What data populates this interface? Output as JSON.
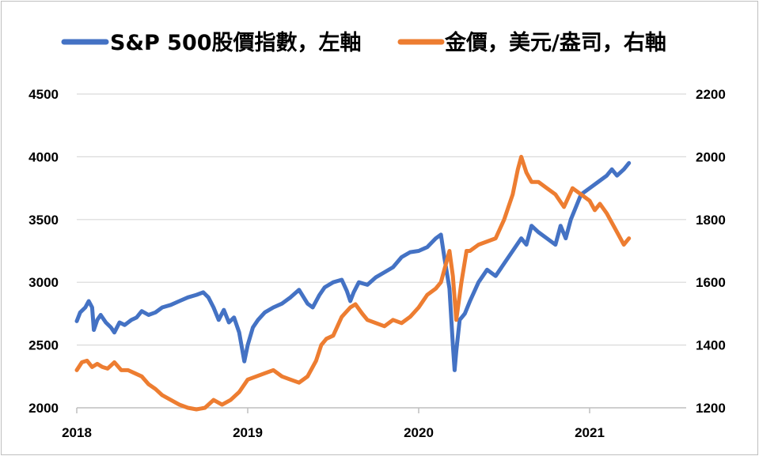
{
  "chart_data": {
    "type": "line",
    "title": "",
    "legend_position": "top",
    "grid": true,
    "x_axis": {
      "ticks": [
        "2018",
        "2019",
        "2020",
        "2021"
      ],
      "range": [
        2018.0,
        2022.0
      ]
    },
    "y_left": {
      "ticks": [
        "2000",
        "2500",
        "3000",
        "3500",
        "4000",
        "4500"
      ],
      "range": [
        2000,
        4500
      ]
    },
    "y_right": {
      "ticks": [
        "1200",
        "1400",
        "1600",
        "1800",
        "2000",
        "2200"
      ],
      "range": [
        1200,
        2200
      ]
    },
    "series": [
      {
        "name": "S&P 500股價指數，左軸",
        "axis": "left",
        "color": "#4472c4",
        "x": [
          2018.0,
          2018.02,
          2018.05,
          2018.07,
          2018.09,
          2018.1,
          2018.12,
          2018.14,
          2018.17,
          2018.2,
          2018.22,
          2018.25,
          2018.28,
          2018.32,
          2018.35,
          2018.38,
          2018.42,
          2018.46,
          2018.5,
          2018.55,
          2018.6,
          2018.65,
          2018.7,
          2018.74,
          2018.77,
          2018.8,
          2018.83,
          2018.86,
          2018.89,
          2018.92,
          2018.95,
          2018.98,
          2019.0,
          2019.03,
          2019.06,
          2019.1,
          2019.15,
          2019.2,
          2019.25,
          2019.3,
          2019.35,
          2019.38,
          2019.42,
          2019.45,
          2019.5,
          2019.55,
          2019.58,
          2019.6,
          2019.62,
          2019.65,
          2019.7,
          2019.75,
          2019.8,
          2019.85,
          2019.9,
          2019.95,
          2020.0,
          2020.05,
          2020.1,
          2020.13,
          2020.15,
          2020.18,
          2020.2,
          2020.21,
          2020.22,
          2020.24,
          2020.27,
          2020.3,
          2020.35,
          2020.4,
          2020.45,
          2020.5,
          2020.55,
          2020.6,
          2020.63,
          2020.66,
          2020.7,
          2020.75,
          2020.8,
          2020.83,
          2020.86,
          2020.89,
          2020.92,
          2020.95,
          2021.0,
          2021.05,
          2021.1,
          2021.13,
          2021.16,
          2021.2,
          2021.23
        ],
        "y": [
          2690,
          2760,
          2800,
          2850,
          2800,
          2620,
          2700,
          2740,
          2680,
          2640,
          2600,
          2680,
          2660,
          2700,
          2720,
          2770,
          2740,
          2760,
          2800,
          2820,
          2850,
          2880,
          2900,
          2920,
          2880,
          2800,
          2700,
          2780,
          2680,
          2720,
          2600,
          2370,
          2500,
          2640,
          2700,
          2760,
          2800,
          2830,
          2880,
          2940,
          2830,
          2800,
          2900,
          2960,
          3000,
          3020,
          2930,
          2850,
          2920,
          3000,
          2980,
          3040,
          3080,
          3120,
          3200,
          3240,
          3250,
          3280,
          3350,
          3380,
          3200,
          2950,
          2500,
          2300,
          2450,
          2700,
          2750,
          2850,
          3000,
          3100,
          3050,
          3150,
          3250,
          3350,
          3300,
          3450,
          3400,
          3350,
          3300,
          3450,
          3350,
          3500,
          3600,
          3700,
          3750,
          3800,
          3850,
          3900,
          3850,
          3900,
          3950
        ]
      },
      {
        "name": "金價，美元/盎司，右軸",
        "axis": "right",
        "color": "#ed7d31",
        "x": [
          2018.0,
          2018.03,
          2018.06,
          2018.09,
          2018.12,
          2018.15,
          2018.18,
          2018.22,
          2018.26,
          2018.3,
          2018.34,
          2018.38,
          2018.42,
          2018.46,
          2018.5,
          2018.55,
          2018.6,
          2018.65,
          2018.7,
          2018.75,
          2018.8,
          2018.85,
          2018.9,
          2018.95,
          2019.0,
          2019.05,
          2019.1,
          2019.15,
          2019.2,
          2019.25,
          2019.3,
          2019.35,
          2019.4,
          2019.43,
          2019.46,
          2019.5,
          2019.55,
          2019.6,
          2019.63,
          2019.67,
          2019.7,
          2019.75,
          2019.8,
          2019.85,
          2019.9,
          2019.95,
          2020.0,
          2020.05,
          2020.1,
          2020.13,
          2020.16,
          2020.18,
          2020.2,
          2020.22,
          2020.25,
          2020.28,
          2020.3,
          2020.35,
          2020.4,
          2020.45,
          2020.5,
          2020.55,
          2020.58,
          2020.6,
          2020.63,
          2020.66,
          2020.7,
          2020.75,
          2020.8,
          2020.85,
          2020.9,
          2020.95,
          2021.0,
          2021.03,
          2021.06,
          2021.1,
          2021.13,
          2021.16,
          2021.2,
          2021.23
        ],
        "y": [
          1320,
          1345,
          1350,
          1330,
          1340,
          1330,
          1325,
          1345,
          1320,
          1320,
          1310,
          1300,
          1275,
          1260,
          1240,
          1225,
          1210,
          1200,
          1195,
          1200,
          1225,
          1210,
          1225,
          1250,
          1290,
          1300,
          1310,
          1320,
          1300,
          1290,
          1280,
          1300,
          1350,
          1400,
          1420,
          1430,
          1490,
          1520,
          1530,
          1500,
          1480,
          1470,
          1460,
          1480,
          1470,
          1490,
          1520,
          1560,
          1580,
          1600,
          1660,
          1700,
          1620,
          1480,
          1600,
          1700,
          1700,
          1720,
          1730,
          1740,
          1800,
          1880,
          1960,
          2000,
          1950,
          1920,
          1920,
          1900,
          1880,
          1840,
          1900,
          1880,
          1860,
          1830,
          1850,
          1820,
          1790,
          1760,
          1720,
          1740
        ]
      }
    ]
  }
}
